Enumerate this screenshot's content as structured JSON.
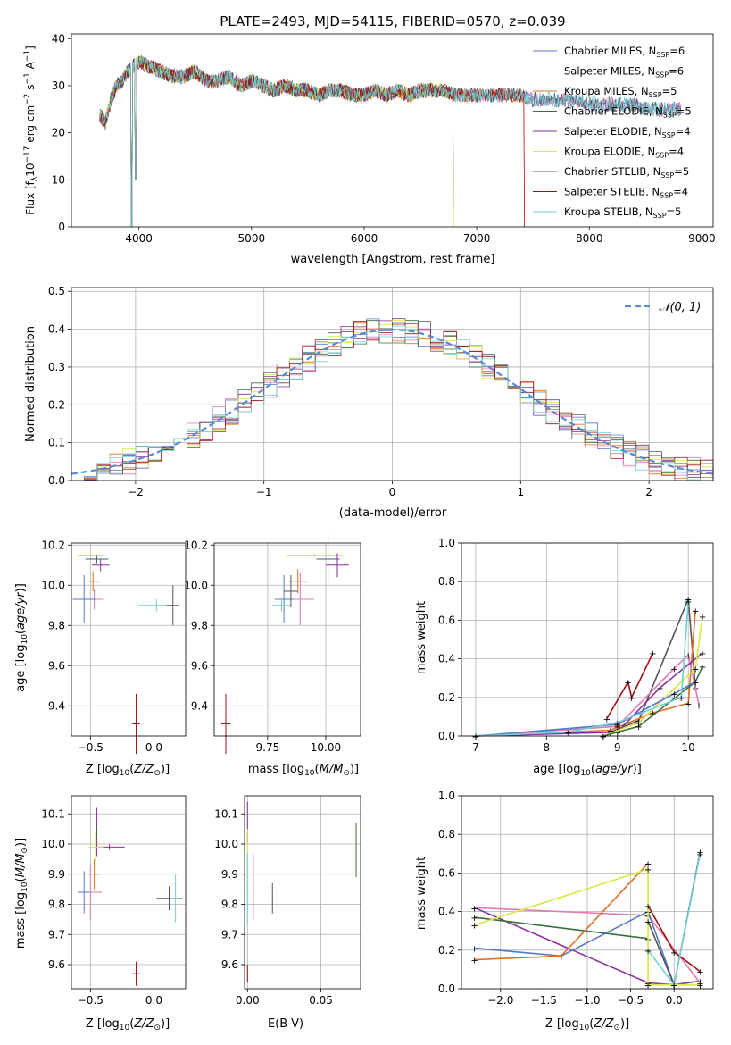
{
  "title": "PLATE=2493, MJD=54115, FIBERID=0570, z=0.039",
  "colors": {
    "Chabrier MILES": "#5577cc",
    "Salpeter MILES": "#e07ab0",
    "Kroupa MILES": "#e07020",
    "Chabrier ELODIE": "#3a6e3a",
    "Salpeter ELODIE": "#8a2ea0",
    "Kroupa ELODIE": "#d8e840",
    "Chabrier STELIB": "#555555",
    "Salpeter STELIB": "#a01010",
    "Kroupa STELIB": "#70d0d8",
    "normal": "#5b8ad8"
  },
  "legend_top": [
    {
      "pre": "Chabrier MILES, N",
      "sub": "SSP",
      "post": "=6",
      "color": "#5577cc"
    },
    {
      "pre": "Salpeter MILES, N",
      "sub": "SSP",
      "post": "=6",
      "color": "#e07ab0"
    },
    {
      "pre": "Kroupa MILES, N",
      "sub": "SSP",
      "post": "=5",
      "color": "#e07020"
    },
    {
      "pre": "Chabrier ELODIE, N",
      "sub": "SSP",
      "post": "=5",
      "color": "#3a6e3a"
    },
    {
      "pre": "Salpeter ELODIE, N",
      "sub": "SSP",
      "post": "=4",
      "color": "#8a2ea0"
    },
    {
      "pre": "Kroupa ELODIE, N",
      "sub": "SSP",
      "post": "=4",
      "color": "#d8e840"
    },
    {
      "pre": "Chabrier STELIB, N",
      "sub": "SSP",
      "post": "=5",
      "color": "#555555"
    },
    {
      "pre": "Salpeter STELIB, N",
      "sub": "SSP",
      "post": "=4",
      "color": "#a01010"
    },
    {
      "pre": "Kroupa STELIB, N",
      "sub": "SSP",
      "post": "=5",
      "color": "#70d0d8"
    }
  ],
  "chart_data": [
    {
      "type": "line",
      "ylabel": "Flux [f_λ10^-17 erg cm^-2 s^-1 A^-1]",
      "xlabel": "wavelength [Angstrom, rest frame]",
      "xlim": [
        3400,
        9100
      ],
      "ylim": [
        0,
        41
      ],
      "xticks": [
        4000,
        5000,
        6000,
        7000,
        8000,
        9000
      ],
      "yticks": [
        0,
        10,
        20,
        30,
        40
      ],
      "x": [
        3650,
        3700,
        3750,
        3800,
        3850,
        3900,
        3950,
        4000,
        4100,
        4200,
        4300,
        4400,
        4500,
        4600,
        4700,
        4800,
        4900,
        5000,
        5100,
        5200,
        5300,
        5400,
        5500,
        5600,
        5700,
        5800,
        5900,
        6000,
        6100,
        6200,
        6300,
        6400,
        6500,
        6600,
        6700,
        6800,
        6900,
        7000,
        7100,
        7200,
        7300,
        7400,
        7500,
        7600,
        7700,
        7800,
        7900,
        8000,
        8100,
        8200,
        8300,
        8400,
        8500,
        8600,
        8700,
        8800
      ],
      "y": [
        24,
        22,
        27,
        30,
        31,
        33,
        34,
        35,
        34,
        33,
        32,
        32,
        33,
        31,
        31,
        32,
        30,
        31,
        30,
        29,
        30,
        29,
        29,
        28,
        29,
        29,
        28,
        28,
        29,
        28,
        29,
        28,
        29,
        29,
        29,
        28,
        28,
        28,
        28,
        28,
        28,
        28,
        27,
        27,
        27,
        27,
        27,
        26,
        26,
        26,
        26,
        26,
        25,
        25,
        25,
        25
      ],
      "absorption_features": [
        {
          "x": 3935,
          "depth": 0
        },
        {
          "x": 3970,
          "depth": 10
        },
        {
          "x": 6800,
          "depth": 0
        },
        {
          "x": 7430,
          "depth": 0
        }
      ]
    },
    {
      "type": "bar",
      "xlabel": "(data-model)/error",
      "ylabel": "Normed distribution",
      "xlim": [
        -2.5,
        2.5
      ],
      "ylim": [
        0,
        0.51
      ],
      "xticks": [
        -2,
        -1,
        0,
        1,
        2
      ],
      "yticks": [
        0.0,
        0.1,
        0.2,
        0.3,
        0.4,
        0.5
      ],
      "legend": "𝒩(0, 1)",
      "bin_width": 0.1,
      "bin_start": -2.5
    },
    {
      "type": "scatter",
      "xlabel": "Z [log10(Z/Z⊙)]",
      "ylabel": "age [log10(age/yr)]",
      "xlim": [
        -0.65,
        0.25
      ],
      "ylim": [
        9.25,
        10.21
      ],
      "xticks": [
        -0.5,
        0.0
      ],
      "yticks": [
        9.4,
        9.6,
        9.8,
        10.0,
        10.2
      ]
    },
    {
      "type": "scatter",
      "xlabel": "mass [log10(M/M⊙)]",
      "xlim": [
        9.52,
        10.15
      ],
      "ylim": [
        9.25,
        10.21
      ],
      "xticks": [
        9.75,
        10.0
      ],
      "yticks": [
        9.4,
        9.6,
        9.8,
        10.0,
        10.2
      ]
    },
    {
      "type": "line",
      "xlabel": "age [log10(age/yr)]",
      "ylabel": "mass weight",
      "xlim": [
        6.8,
        10.35
      ],
      "ylim": [
        0,
        1
      ],
      "xticks": [
        7,
        8,
        9,
        10
      ],
      "yticks": [
        0.0,
        0.2,
        0.4,
        0.6,
        0.8,
        1.0
      ]
    },
    {
      "type": "scatter",
      "xlabel": "Z [log10(Z/Z⊙)]",
      "ylabel": "mass [log10(M/M⊙)]",
      "xlim": [
        -0.65,
        0.25
      ],
      "ylim": [
        9.52,
        10.16
      ],
      "xticks": [
        -0.5,
        0.0
      ],
      "yticks": [
        9.6,
        9.7,
        9.8,
        9.9,
        10.0,
        10.1
      ]
    },
    {
      "type": "scatter",
      "xlabel": "E(B-V)",
      "xlim": [
        -0.002,
        0.077
      ],
      "ylim": [
        9.52,
        10.16
      ],
      "xticks": [
        0.0,
        0.05
      ],
      "yticks": [
        9.6,
        9.7,
        9.8,
        9.9,
        10.0,
        10.1
      ]
    },
    {
      "type": "line",
      "xlabel": "Z [log10(Z/Z⊙)]",
      "ylabel": "mass weight",
      "xlim": [
        -2.45,
        0.45
      ],
      "ylim": [
        0,
        1
      ],
      "xticks": [
        -2.0,
        -1.5,
        -1.0,
        -0.5,
        0.0
      ],
      "yticks": [
        0.0,
        0.2,
        0.4,
        0.6,
        0.8,
        1.0
      ]
    }
  ],
  "axis_text": {
    "flux_ylabel_pre": "Flux [f",
    "flux_xlabel": "wavelength [Angstrom, rest frame]",
    "hist_xlabel": "(data-model)/error",
    "hist_ylabel": "Normed distribution",
    "legend_normal": "𝒩(0, 1)",
    "age_ylabel": "age  [log",
    "z_xlabel": "Z [log",
    "mass_xlabel": "mass [log",
    "age_xlabel": "age  [log",
    "mw_ylabel": "mass weight",
    "mass_ylabel": "mass [log",
    "ebv_xlabel": "E(B-V)"
  }
}
